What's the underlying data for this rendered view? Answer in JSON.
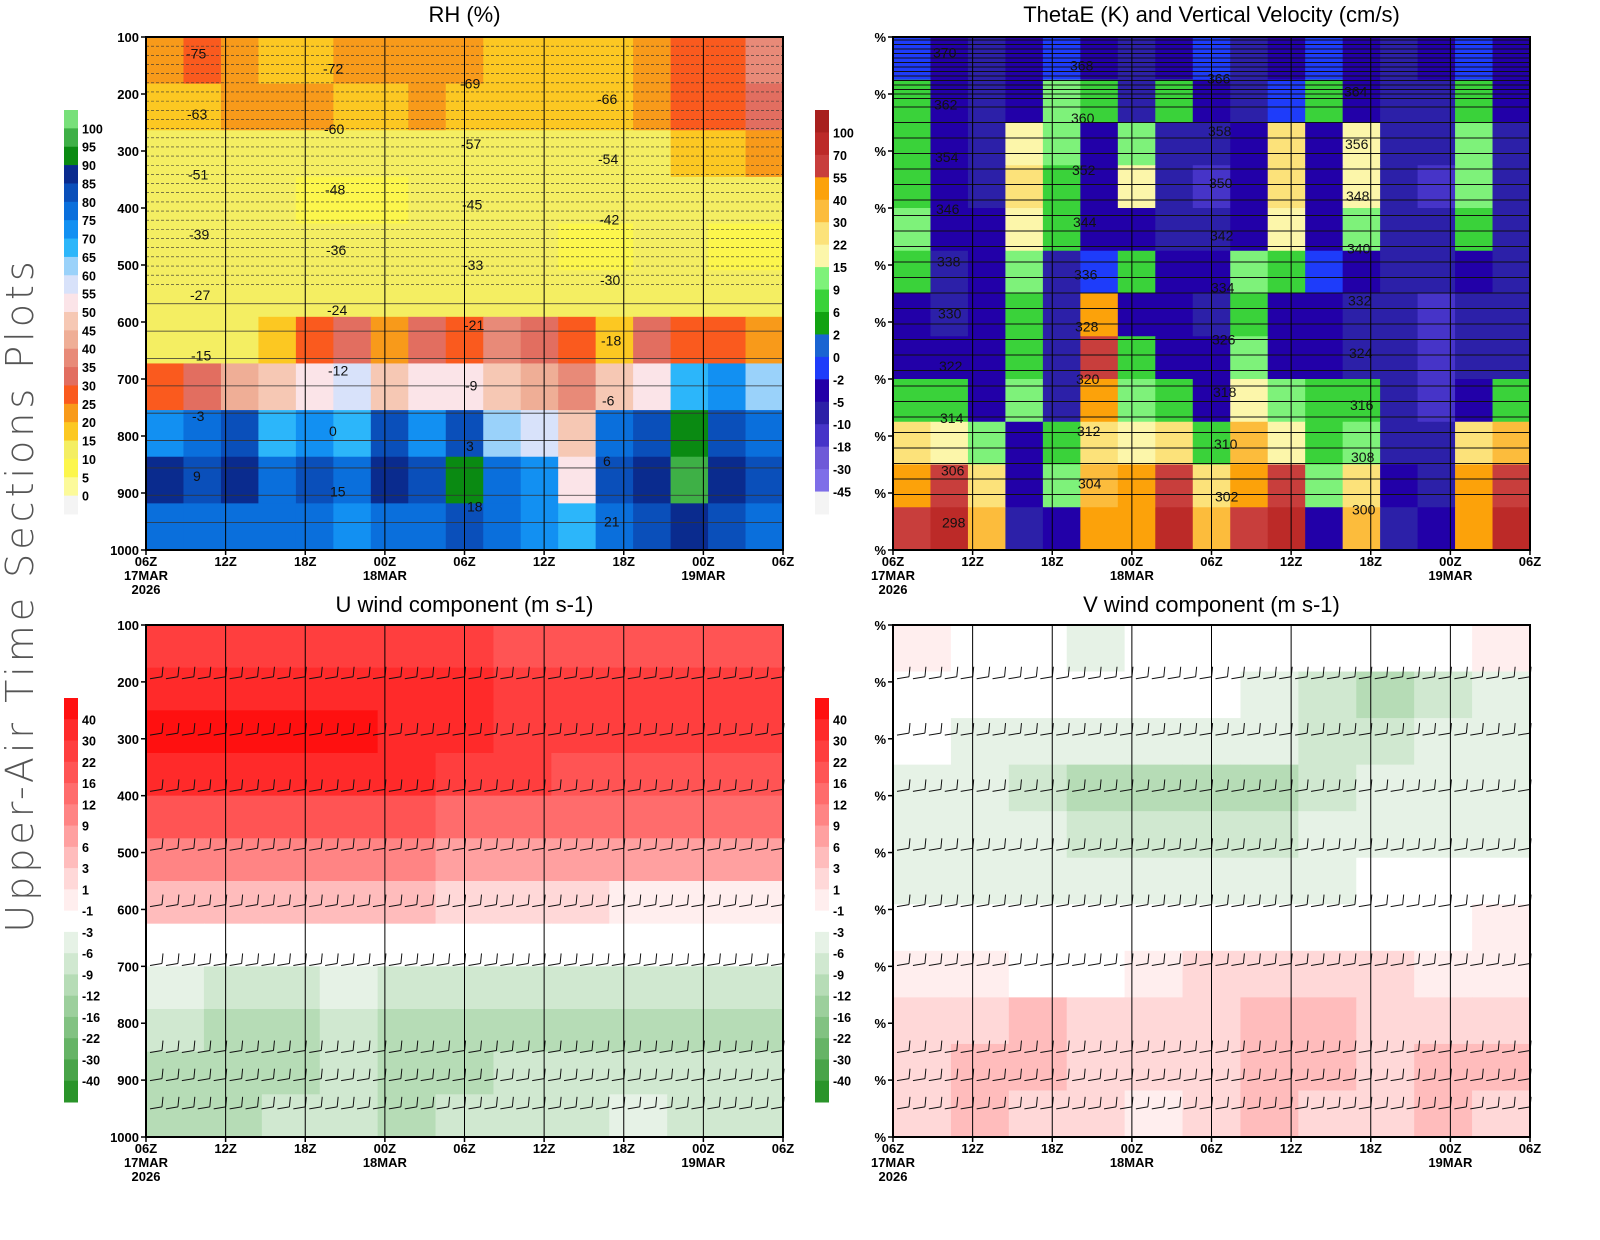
{
  "figure_title": "Upper-Air Time Sections Plots",
  "chart_data": [
    {
      "type": "heatmap",
      "id": "rh",
      "title": "RH (%)",
      "x_ticks": [
        "06Z",
        "12Z",
        "18Z",
        "00Z",
        "06Z",
        "12Z",
        "18Z",
        "00Z",
        "06Z"
      ],
      "x_dates": [
        "17MAR",
        "",
        "",
        "18MAR",
        "",
        "",
        "",
        "19MAR",
        ""
      ],
      "x_year": "2026",
      "y_ticks": [
        "100",
        "200",
        "300",
        "400",
        "500",
        "600",
        "700",
        "800",
        "900",
        "1000"
      ],
      "ylim": [
        1000,
        100
      ],
      "colorbar": {
        "labels": [
          "100",
          "95",
          "90",
          "85",
          "80",
          "75",
          "70",
          "65",
          "60",
          "55",
          "50",
          "45",
          "40",
          "35",
          "30",
          "25",
          "20",
          "15",
          "10",
          "5",
          "0"
        ],
        "colors": [
          "#78e07a",
          "#3eb046",
          "#0a8a12",
          "#0a2b8e",
          "#0a4fba",
          "#0a6fdc",
          "#1290f2",
          "#2cb6fa",
          "#9ad2fa",
          "#d8e2fa",
          "#fbe4e8",
          "#f6c8b4",
          "#efae96",
          "#e88a78",
          "#e26e60",
          "#fa5a1e",
          "#f89a1a",
          "#fcc822",
          "#f4ee62",
          "#fcf64c",
          "#fcfa9a",
          "#f4f4f4"
        ]
      },
      "contour_labels": [
        "-75",
        "-72",
        "-69",
        "-66",
        "-63",
        "-60",
        "-57",
        "-54",
        "-51",
        "-48",
        "-45",
        "-42",
        "-39",
        "-36",
        "-33",
        "-30",
        "-27",
        "-24",
        "-21",
        "-18",
        "-15",
        "-12",
        "-9",
        "-6",
        "-3",
        "0",
        "3",
        "6",
        "9",
        "15",
        "18",
        "21"
      ],
      "field_rows": [
        [
          20,
          25,
          22,
          18,
          18,
          20,
          22,
          22,
          20,
          15,
          15,
          15,
          15,
          20,
          25,
          28,
          35
        ],
        [
          15,
          15,
          20,
          22,
          22,
          15,
          18,
          20,
          18,
          15,
          15,
          15,
          15,
          22,
          25,
          28,
          30
        ],
        [
          10,
          10,
          10,
          10,
          10,
          10,
          10,
          10,
          10,
          10,
          12,
          10,
          10,
          12,
          15,
          18,
          20
        ],
        [
          10,
          10,
          10,
          10,
          8,
          5,
          8,
          10,
          10,
          10,
          10,
          10,
          10,
          10,
          10,
          10,
          10
        ],
        [
          10,
          10,
          10,
          10,
          10,
          10,
          10,
          10,
          10,
          10,
          10,
          5,
          5,
          10,
          10,
          5,
          5
        ],
        [
          10,
          10,
          10,
          10,
          10,
          10,
          10,
          10,
          10,
          10,
          10,
          10,
          10,
          10,
          10,
          10,
          10
        ],
        [
          10,
          10,
          12,
          18,
          25,
          30,
          20,
          30,
          25,
          35,
          30,
          28,
          15,
          30,
          28,
          25,
          20
        ],
        [
          28,
          30,
          40,
          45,
          50,
          55,
          48,
          50,
          50,
          45,
          40,
          35,
          45,
          50,
          65,
          70,
          60
        ],
        [
          70,
          75,
          80,
          65,
          70,
          65,
          80,
          70,
          80,
          60,
          55,
          45,
          75,
          80,
          90,
          80,
          75
        ],
        [
          85,
          80,
          85,
          75,
          80,
          75,
          85,
          80,
          90,
          75,
          70,
          50,
          80,
          85,
          95,
          85,
          80
        ],
        [
          75,
          75,
          75,
          75,
          75,
          70,
          75,
          75,
          80,
          75,
          70,
          65,
          75,
          80,
          85,
          80,
          75
        ]
      ]
    },
    {
      "type": "heatmap",
      "id": "thetae",
      "title": "ThetaE (K) and Vertical Velocity (cm/s)",
      "x_ticks": [
        "06Z",
        "12Z",
        "18Z",
        "00Z",
        "06Z",
        "12Z",
        "18Z",
        "00Z",
        "06Z"
      ],
      "x_dates": [
        "17MAR",
        "",
        "",
        "18MAR",
        "",
        "",
        "",
        "19MAR",
        ""
      ],
      "x_year": "2026",
      "y_ticks": [
        "%",
        "%",
        "%",
        "%",
        "%",
        "%",
        "%",
        "%",
        "%",
        "%"
      ],
      "colorbar": {
        "labels": [
          "100",
          "70",
          "55",
          "40",
          "30",
          "22",
          "15",
          "9",
          "6",
          "2",
          "0",
          "-2",
          "-5",
          "-10",
          "-18",
          "-30",
          "-45"
        ],
        "colors": [
          "#a8201e",
          "#bc2a28",
          "#c83e3c",
          "#fca20a",
          "#fcbc3c",
          "#fce27a",
          "#fcf6aa",
          "#7ef27a",
          "#3ad23a",
          "#12a212",
          "#1a64d2",
          "#1e3cfa",
          "#2200a8",
          "#2c20a8",
          "#4634c8",
          "#6e5ad8",
          "#7e6ee8",
          "#f4f4f4"
        ]
      },
      "contour_labels": [
        "370",
        "368",
        "366",
        "364",
        "362",
        "360",
        "358",
        "356",
        "354",
        "352",
        "350",
        "348",
        "346",
        "344",
        "342",
        "340",
        "338",
        "336",
        "334",
        "332",
        "330",
        "328",
        "326",
        "324",
        "322",
        "320",
        "318",
        "316",
        "314",
        "312",
        "310",
        "308",
        "306",
        "304",
        "302",
        "300",
        "298"
      ],
      "field_rows": [
        [
          -2,
          -5,
          -10,
          -5,
          -2,
          -5,
          -10,
          -5,
          -2,
          -10,
          -5,
          -2,
          -5,
          -10,
          -5,
          -2,
          -5
        ],
        [
          6,
          -5,
          -10,
          -5,
          9,
          6,
          -10,
          6,
          -5,
          -10,
          -2,
          6,
          -5,
          -10,
          -10,
          6,
          -5
        ],
        [
          6,
          -5,
          -10,
          15,
          9,
          -5,
          9,
          -10,
          -10,
          -5,
          22,
          -5,
          15,
          -10,
          -10,
          9,
          -10
        ],
        [
          6,
          -5,
          -10,
          22,
          6,
          -5,
          15,
          -10,
          -18,
          -5,
          22,
          -5,
          15,
          -10,
          -18,
          9,
          -10
        ],
        [
          9,
          -5,
          -5,
          15,
          6,
          -5,
          -5,
          -10,
          -10,
          -5,
          15,
          -5,
          9,
          -10,
          -10,
          6,
          -10
        ],
        [
          6,
          -10,
          -5,
          9,
          -10,
          -2,
          6,
          -5,
          -5,
          9,
          6,
          -2,
          -5,
          -10,
          -10,
          -5,
          -10
        ],
        [
          -5,
          -10,
          -5,
          6,
          -10,
          40,
          -5,
          -5,
          -10,
          6,
          -5,
          -5,
          -10,
          -10,
          -18,
          -10,
          -10
        ],
        [
          -5,
          -5,
          -5,
          6,
          -10,
          55,
          6,
          -5,
          -5,
          9,
          -5,
          -5,
          -10,
          -10,
          -18,
          -10,
          -10
        ],
        [
          6,
          6,
          -5,
          9,
          -10,
          40,
          9,
          6,
          -5,
          15,
          9,
          6,
          6,
          -10,
          -18,
          -5,
          6
        ],
        [
          22,
          15,
          9,
          -5,
          6,
          22,
          15,
          22,
          6,
          30,
          15,
          6,
          9,
          -10,
          -10,
          22,
          30
        ],
        [
          40,
          55,
          22,
          -5,
          9,
          30,
          40,
          55,
          22,
          40,
          55,
          9,
          22,
          -5,
          -10,
          40,
          55
        ],
        [
          55,
          70,
          30,
          -10,
          -5,
          40,
          40,
          70,
          30,
          55,
          70,
          -5,
          30,
          -10,
          -5,
          40,
          70
        ]
      ]
    },
    {
      "type": "heatmap",
      "id": "uwind",
      "title": "U wind component (m s-1)",
      "x_ticks": [
        "06Z",
        "12Z",
        "18Z",
        "00Z",
        "06Z",
        "12Z",
        "18Z",
        "00Z",
        "06Z"
      ],
      "x_dates": [
        "17MAR",
        "",
        "",
        "18MAR",
        "",
        "",
        "",
        "19MAR",
        ""
      ],
      "x_year": "2026",
      "y_ticks": [
        "100",
        "200",
        "300",
        "400",
        "500",
        "600",
        "700",
        "800",
        "900",
        "1000"
      ],
      "ylim": [
        1000,
        100
      ],
      "colorbar": {
        "labels": [
          "40",
          "30",
          "22",
          "16",
          "12",
          "9",
          "6",
          "3",
          "1",
          "-1",
          "-3",
          "-6",
          "-9",
          "-12",
          "-16",
          "-22",
          "-30",
          "-40"
        ],
        "colors": [
          "#ff1010",
          "#ff2a2a",
          "#ff3e3e",
          "#ff5454",
          "#ff6c6c",
          "#ff8484",
          "#ffa0a0",
          "#ffbcbc",
          "#ffd8d8",
          "#ffeeee",
          "#ffffff",
          "#e6f2e6",
          "#d0e8d0",
          "#b6dcb6",
          "#9ccf9c",
          "#82c282",
          "#66b466",
          "#48a448",
          "#2a942a"
        ]
      },
      "field_rows": [
        [
          22,
          22,
          22,
          22,
          22,
          22,
          16,
          16,
          16,
          16,
          16
        ],
        [
          30,
          30,
          30,
          30,
          30,
          30,
          22,
          22,
          22,
          22,
          22
        ],
        [
          40,
          40,
          40,
          40,
          30,
          30,
          22,
          22,
          22,
          22,
          22
        ],
        [
          30,
          30,
          30,
          30,
          30,
          22,
          22,
          16,
          16,
          16,
          16
        ],
        [
          16,
          16,
          16,
          16,
          16,
          12,
          12,
          12,
          12,
          12,
          12
        ],
        [
          9,
          9,
          9,
          9,
          9,
          6,
          6,
          6,
          6,
          6,
          6
        ],
        [
          3,
          3,
          3,
          3,
          3,
          1,
          1,
          1,
          -1,
          -1,
          -1
        ],
        [
          -3,
          -3,
          -3,
          -3,
          -3,
          -3,
          -3,
          -3,
          -3,
          -3,
          -3
        ],
        [
          -6,
          -9,
          -9,
          -6,
          -9,
          -9,
          -9,
          -9,
          -9,
          -9,
          -9
        ],
        [
          -9,
          -12,
          -12,
          -9,
          -12,
          -12,
          -12,
          -12,
          -12,
          -12,
          -12
        ],
        [
          -12,
          -12,
          -12,
          -9,
          -12,
          -12,
          -9,
          -9,
          -9,
          -9,
          -9
        ],
        [
          -12,
          -12,
          -9,
          -9,
          -12,
          -9,
          -9,
          -9,
          -6,
          -9,
          -9
        ]
      ]
    },
    {
      "type": "heatmap",
      "id": "vwind",
      "title": "V wind component (m s-1)",
      "x_ticks": [
        "06Z",
        "12Z",
        "18Z",
        "00Z",
        "06Z",
        "12Z",
        "18Z",
        "00Z",
        "06Z"
      ],
      "x_dates": [
        "17MAR",
        "",
        "",
        "18MAR",
        "",
        "",
        "",
        "19MAR",
        ""
      ],
      "x_year": "2026",
      "y_ticks": [
        "%",
        "%",
        "%",
        "%",
        "%",
        "%",
        "%",
        "%",
        "%",
        "%"
      ],
      "colorbar": {
        "labels": [
          "40",
          "30",
          "22",
          "16",
          "12",
          "9",
          "6",
          "3",
          "1",
          "-1",
          "-3",
          "-6",
          "-9",
          "-12",
          "-16",
          "-22",
          "-30",
          "-40"
        ],
        "colors": [
          "#ff1010",
          "#ff2a2a",
          "#ff3e3e",
          "#ff5454",
          "#ff6c6c",
          "#ff8484",
          "#ffa0a0",
          "#ffbcbc",
          "#ffd8d8",
          "#ffeeee",
          "#ffffff",
          "#e6f2e6",
          "#d0e8d0",
          "#b6dcb6",
          "#9ccf9c",
          "#82c282",
          "#66b466",
          "#48a448",
          "#2a942a"
        ]
      },
      "field_rows": [
        [
          -1,
          -3,
          -3,
          -6,
          -3,
          -3,
          -3,
          -3,
          -3,
          -3,
          -1
        ],
        [
          -3,
          -3,
          -3,
          -3,
          -3,
          -3,
          -6,
          -9,
          -12,
          -9,
          -6
        ],
        [
          -3,
          -6,
          -6,
          -6,
          -6,
          -6,
          -6,
          -9,
          -9,
          -6,
          -6
        ],
        [
          -6,
          -6,
          -9,
          -12,
          -12,
          -12,
          -12,
          -9,
          -6,
          -6,
          -6
        ],
        [
          -6,
          -6,
          -6,
          -9,
          -9,
          -9,
          -9,
          -6,
          -6,
          -6,
          -6
        ],
        [
          -6,
          -6,
          -6,
          -6,
          -6,
          -6,
          -6,
          -6,
          -3,
          -3,
          -3
        ],
        [
          -3,
          -3,
          -3,
          -3,
          -3,
          -3,
          -3,
          -3,
          -3,
          -3,
          -1
        ],
        [
          -1,
          -1,
          -3,
          -3,
          -1,
          1,
          1,
          1,
          1,
          -1,
          -1
        ],
        [
          1,
          1,
          3,
          1,
          1,
          1,
          3,
          3,
          1,
          1,
          1
        ],
        [
          1,
          3,
          3,
          1,
          1,
          1,
          3,
          3,
          1,
          3,
          3
        ],
        [
          1,
          3,
          1,
          1,
          -1,
          1,
          3,
          1,
          1,
          3,
          1
        ]
      ]
    }
  ]
}
